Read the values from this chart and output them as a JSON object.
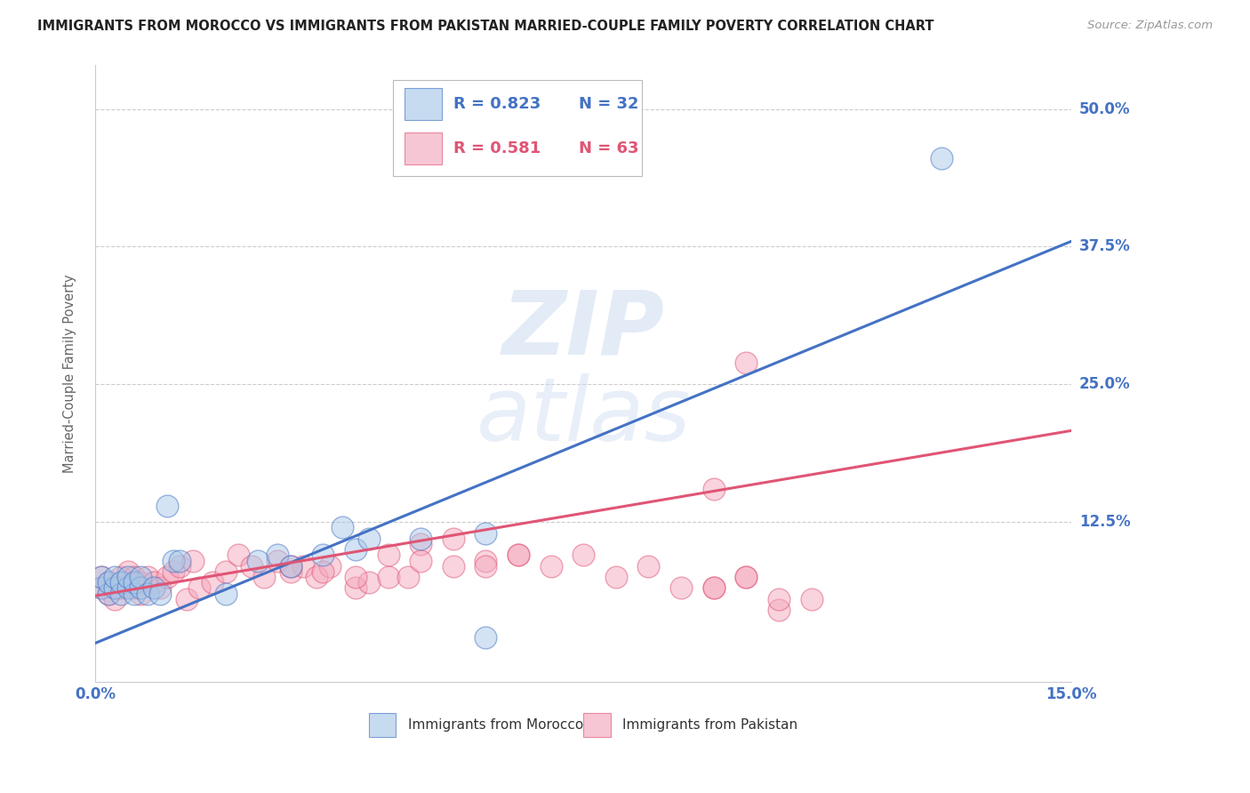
{
  "title": "IMMIGRANTS FROM MOROCCO VS IMMIGRANTS FROM PAKISTAN MARRIED-COUPLE FAMILY POVERTY CORRELATION CHART",
  "source": "Source: ZipAtlas.com",
  "ylabel": "Married-Couple Family Poverty",
  "ytick_labels": [
    "12.5%",
    "25.0%",
    "37.5%",
    "50.0%"
  ],
  "ytick_values": [
    0.125,
    0.25,
    0.375,
    0.5
  ],
  "xlim": [
    0.0,
    0.15
  ],
  "ylim": [
    -0.02,
    0.54
  ],
  "morocco_color": "#a8c8e8",
  "pakistan_color": "#f4a8be",
  "morocco_line_color": "#4472c4",
  "pakistan_line_color": "#e05575",
  "morocco_R": 0.823,
  "morocco_N": 32,
  "pakistan_R": 0.581,
  "pakistan_N": 63,
  "background_color": "#ffffff",
  "grid_color": "#cccccc",
  "axis_color": "#4472c4",
  "morocco_x": [
    0.001,
    0.001,
    0.002,
    0.002,
    0.003,
    0.003,
    0.004,
    0.004,
    0.005,
    0.005,
    0.006,
    0.006,
    0.007,
    0.007,
    0.008,
    0.009,
    0.01,
    0.011,
    0.012,
    0.013,
    0.02,
    0.025,
    0.028,
    0.03,
    0.035,
    0.038,
    0.04,
    0.042,
    0.05,
    0.06,
    0.06,
    0.13
  ],
  "morocco_y": [
    0.065,
    0.075,
    0.06,
    0.07,
    0.065,
    0.075,
    0.06,
    0.07,
    0.065,
    0.075,
    0.06,
    0.07,
    0.065,
    0.075,
    0.06,
    0.065,
    0.06,
    0.14,
    0.09,
    0.09,
    0.06,
    0.09,
    0.095,
    0.085,
    0.095,
    0.12,
    0.1,
    0.11,
    0.11,
    0.115,
    0.02,
    0.455
  ],
  "pakistan_x": [
    0.001,
    0.001,
    0.002,
    0.002,
    0.003,
    0.003,
    0.004,
    0.004,
    0.005,
    0.005,
    0.006,
    0.006,
    0.007,
    0.007,
    0.008,
    0.009,
    0.01,
    0.011,
    0.012,
    0.013,
    0.014,
    0.015,
    0.016,
    0.018,
    0.02,
    0.022,
    0.024,
    0.026,
    0.028,
    0.03,
    0.032,
    0.034,
    0.036,
    0.04,
    0.042,
    0.045,
    0.048,
    0.05,
    0.055,
    0.06,
    0.065,
    0.07,
    0.075,
    0.08,
    0.085,
    0.09,
    0.095,
    0.1,
    0.105,
    0.11,
    0.05,
    0.055,
    0.06,
    0.065,
    0.095,
    0.1,
    0.105,
    0.03,
    0.035,
    0.04,
    0.045,
    0.095,
    0.1
  ],
  "pakistan_y": [
    0.065,
    0.075,
    0.06,
    0.07,
    0.055,
    0.065,
    0.075,
    0.065,
    0.07,
    0.08,
    0.065,
    0.075,
    0.06,
    0.07,
    0.075,
    0.07,
    0.065,
    0.075,
    0.08,
    0.085,
    0.055,
    0.09,
    0.065,
    0.07,
    0.08,
    0.095,
    0.085,
    0.075,
    0.09,
    0.08,
    0.085,
    0.075,
    0.085,
    0.065,
    0.07,
    0.075,
    0.075,
    0.105,
    0.085,
    0.09,
    0.095,
    0.085,
    0.095,
    0.075,
    0.085,
    0.065,
    0.065,
    0.075,
    0.045,
    0.055,
    0.09,
    0.11,
    0.085,
    0.095,
    0.065,
    0.075,
    0.055,
    0.085,
    0.08,
    0.075,
    0.095,
    0.155,
    0.27
  ],
  "morocco_line_x": [
    0.0,
    0.15
  ],
  "morocco_line_y": [
    0.015,
    0.38
  ],
  "pakistan_line_x": [
    0.0,
    0.15
  ],
  "pakistan_line_y": [
    0.058,
    0.208
  ]
}
